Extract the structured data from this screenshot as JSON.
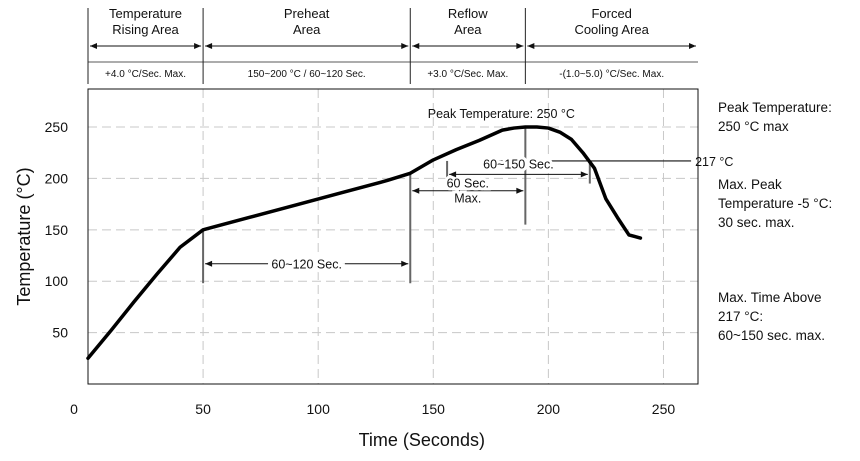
{
  "chart_data": {
    "type": "line",
    "xlabel": "Time (Seconds)",
    "ylabel": "Temperature (°C)",
    "xlim": [
      0,
      265
    ],
    "ylim": [
      0,
      287
    ],
    "x_ticks": [
      0,
      50,
      100,
      150,
      200,
      250
    ],
    "y_ticks": [
      50,
      100,
      150,
      200,
      250
    ],
    "grid": true,
    "series": [
      {
        "x": [
          0,
          10,
          20,
          30,
          40,
          50,
          55,
          70,
          90,
          110,
          130,
          140,
          150,
          160,
          170,
          180,
          185,
          190,
          195,
          200,
          205,
          210,
          215,
          220,
          225,
          230,
          235,
          240
        ],
        "y": [
          25,
          52,
          80,
          107,
          133,
          150,
          153,
          162,
          174,
          186,
          198,
          205,
          218,
          228,
          237,
          247,
          249,
          250,
          250,
          249,
          245,
          238,
          225,
          210,
          180,
          162,
          145,
          142
        ],
        "color": "#000000"
      }
    ],
    "zones": [
      {
        "title_lines": [
          "Temperature",
          "Rising Area"
        ],
        "rate": "+4.0 °C/Sec. Max.",
        "x_start": 0,
        "x_end": 50
      },
      {
        "title_lines": [
          "Preheat",
          "Area"
        ],
        "rate": "150~200 °C / 60~120 Sec.",
        "x_start": 50,
        "x_end": 140
      },
      {
        "title_lines": [
          "Reflow",
          "Area"
        ],
        "rate": "+3.0 °C/Sec. Max.",
        "x_start": 140,
        "x_end": 190
      },
      {
        "title_lines": [
          "Forced",
          "Cooling Area"
        ],
        "rate": "-(1.0~5.0) °C/Sec. Max.",
        "x_start": 190,
        "x_end": 265
      }
    ],
    "annotations": {
      "peak_label": "Peak Temperature: 250 °C",
      "peak_x": 190,
      "peak_temp": 250,
      "liquidus_label": "217 °C",
      "liquidus_temp": 217,
      "preheat_span_label": "60~120 Sec.",
      "preheat_span": [
        50,
        140
      ],
      "above_span_label": "60~150 Sec.",
      "above_span": [
        156,
        218
      ],
      "peak_window_label_lines": [
        "60 Sec.",
        "Max."
      ],
      "peak_window": [
        140,
        190
      ]
    }
  },
  "side_notes": [
    {
      "lines": [
        "Peak Temperature:",
        "250 °C max"
      ]
    },
    {
      "lines": [
        "Max. Peak",
        "Temperature -5 °C:",
        "30 sec. max."
      ]
    },
    {
      "lines": [
        "Max. Time Above",
        "217 °C:",
        "60~150 sec. max."
      ]
    }
  ]
}
